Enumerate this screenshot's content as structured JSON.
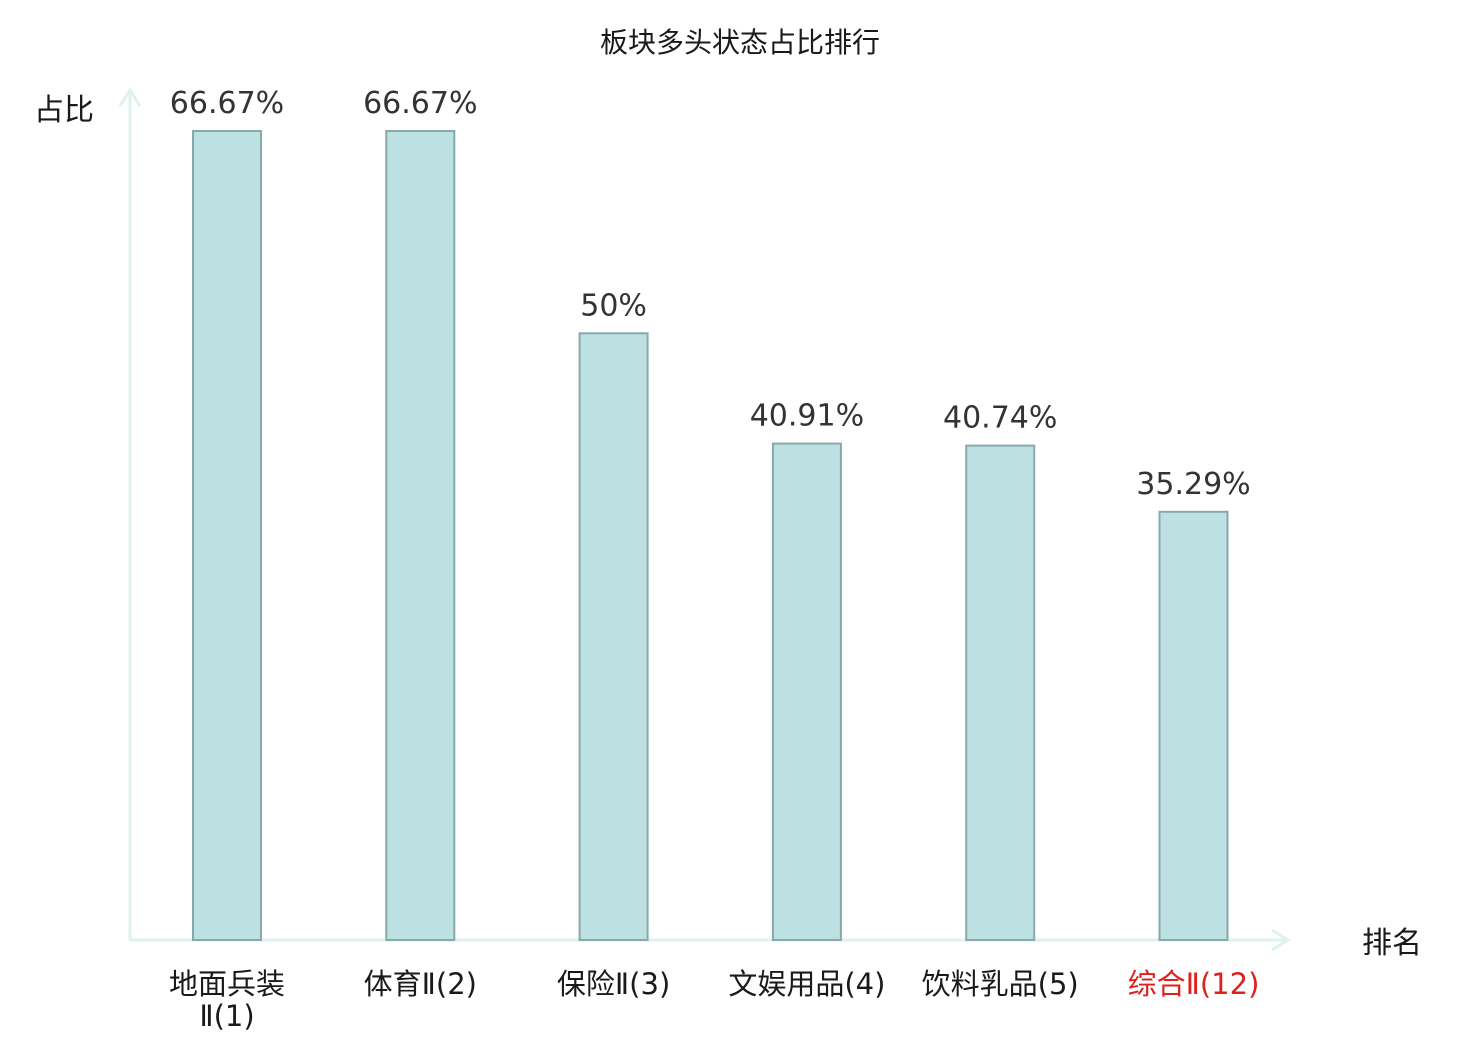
{
  "chart_data": {
    "type": "bar",
    "title": "板块多头状态占比排行",
    "xlabel": "排名",
    "ylabel": "占比",
    "categories": [
      [
        "地面兵装",
        "Ⅱ(1)"
      ],
      [
        "体育Ⅱ(2)"
      ],
      [
        "保险Ⅱ(3)"
      ],
      [
        "文娱用品(4)"
      ],
      [
        "饮料乳品(5)"
      ],
      [
        "综合Ⅱ(12)"
      ]
    ],
    "values": [
      66.67,
      66.67,
      50,
      40.91,
      40.74,
      35.29
    ],
    "value_labels": [
      "66.67%",
      "66.67%",
      "50%",
      "40.91%",
      "40.74%",
      "35.29%"
    ],
    "highlight_index": 5,
    "ylim": [
      0,
      66.67
    ],
    "grid": false,
    "legend": "none"
  },
  "colors": {
    "bar_fill": "#bde0e3",
    "bar_stroke": "#86a9ac",
    "axis": "#dff2ef",
    "text": "#333333",
    "title": "#1a1a1a",
    "highlight": "#e0201b"
  }
}
